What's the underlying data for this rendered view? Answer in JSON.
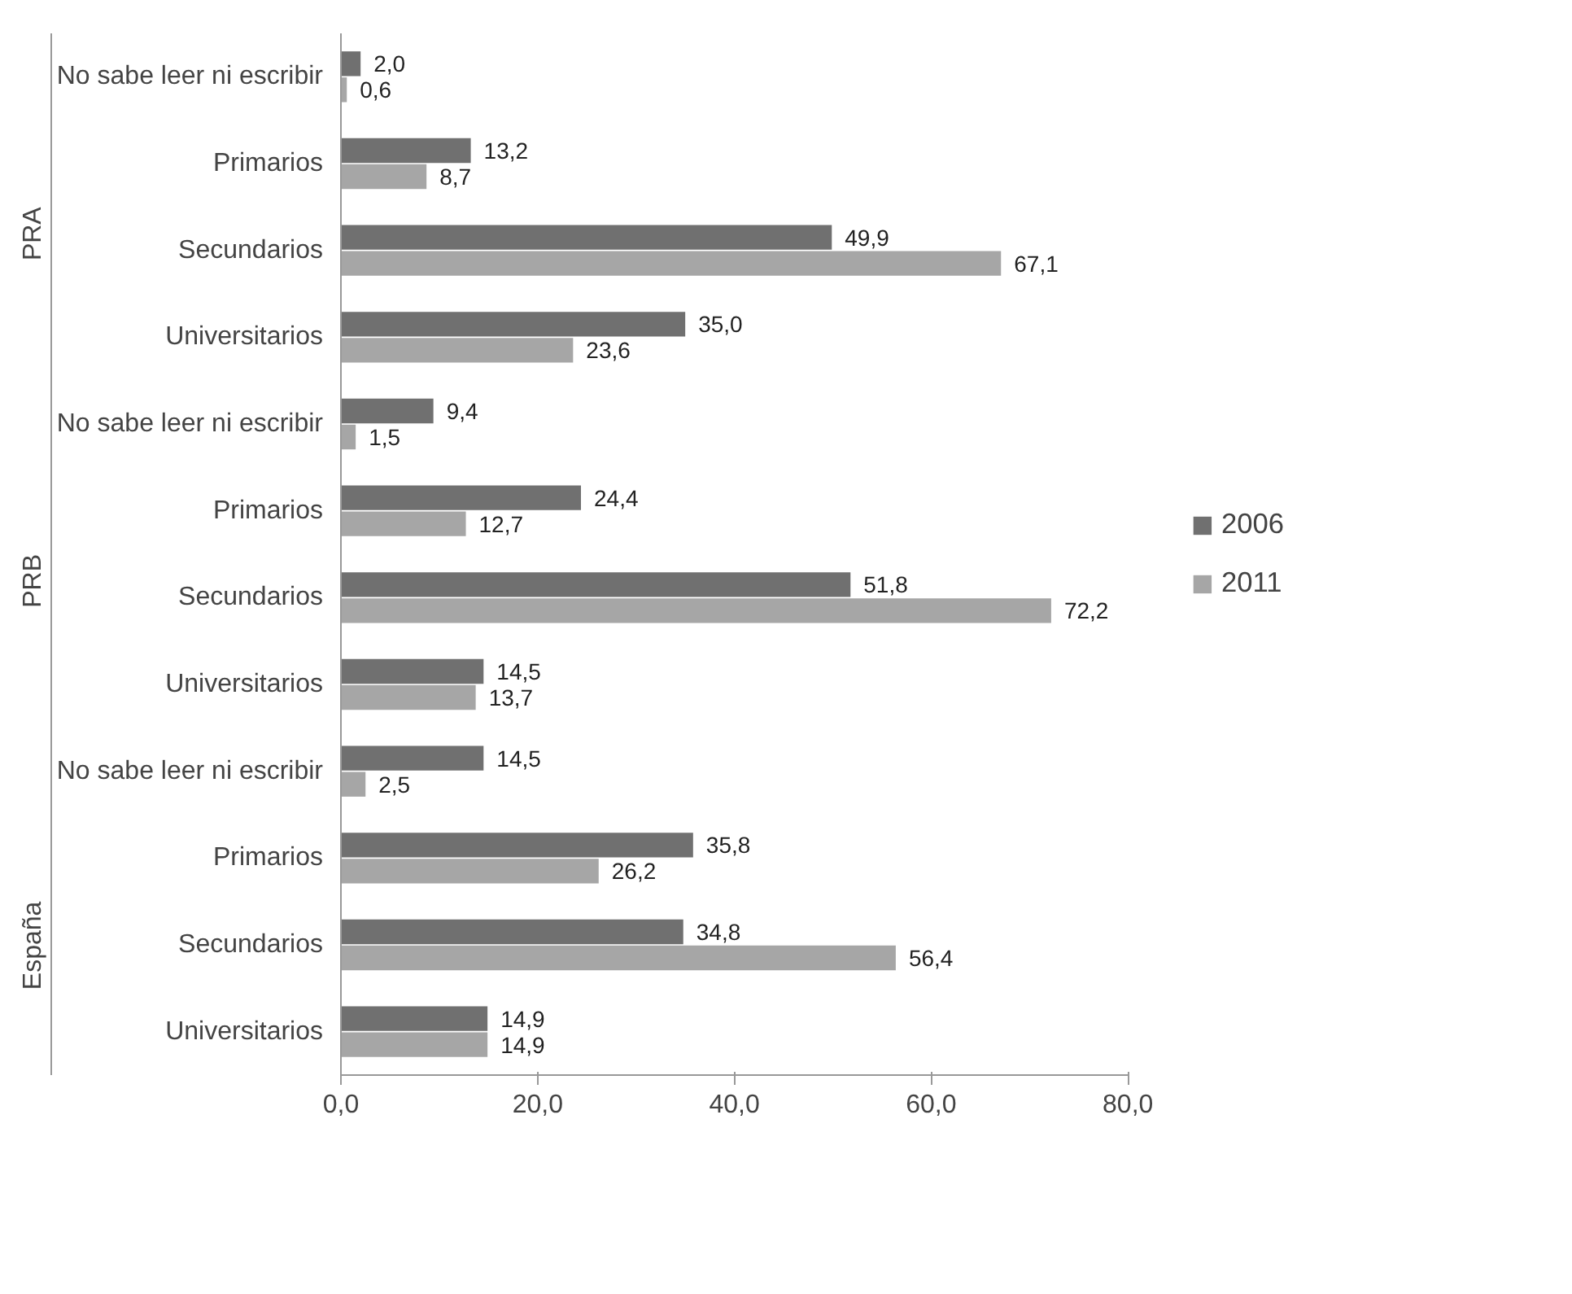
{
  "chart_data": {
    "type": "bar",
    "orientation": "horizontal",
    "categories": [
      "No sabe leer ni escribir",
      "Primarios",
      "Secundarios",
      "Universitarios",
      "No sabe leer ni escribir",
      "Primarios",
      "Secundarios",
      "Universitarios",
      "No sabe leer ni escribir",
      "Primarios",
      "Secundarios",
      "Universitarios"
    ],
    "annotations": [
      "PRA",
      "PRB",
      "España"
    ],
    "series": [
      {
        "name": "2006",
        "color": "#707070",
        "values": [
          2.0,
          13.2,
          49.9,
          35.0,
          9.4,
          24.4,
          51.8,
          14.5,
          14.5,
          35.8,
          34.8,
          14.9
        ],
        "value_labels": [
          "2,0",
          "13,2",
          "49,9",
          "35,0",
          "9,4",
          "24,4",
          "51,8",
          "14,5",
          "14,5",
          "35,8",
          "34,8",
          "14,9"
        ]
      },
      {
        "name": "2011",
        "color": "#a6a6a6",
        "values": [
          0.6,
          8.7,
          67.1,
          23.6,
          1.5,
          12.7,
          72.2,
          13.7,
          2.5,
          26.2,
          56.4,
          14.9
        ],
        "value_labels": [
          "0,6",
          "8,7",
          "67,1",
          "23,6",
          "1,5",
          "12,7",
          "72,2",
          "13,7",
          "2,5",
          "26,2",
          "56,4",
          "14,9"
        ]
      }
    ],
    "xlim": [
      0,
      80
    ],
    "xticks": [
      {
        "value": 0,
        "label": "0,0"
      },
      {
        "value": 20,
        "label": "20,0"
      },
      {
        "value": 40,
        "label": "40,0"
      },
      {
        "value": 60,
        "label": "60,0"
      },
      {
        "value": 80,
        "label": "80,0"
      }
    ],
    "data_labels": true,
    "grid": false,
    "legend": "right"
  }
}
